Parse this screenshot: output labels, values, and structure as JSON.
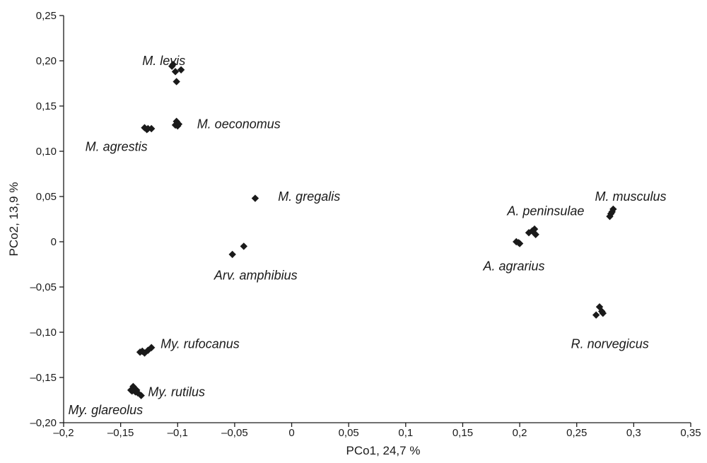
{
  "chart_data": {
    "type": "scatter",
    "title": "",
    "xlabel": "PCo1,  24,7 %",
    "ylabel": "PCo2,  13,9 %",
    "xlim": [
      -0.2,
      0.35
    ],
    "ylim": [
      -0.2,
      0.25
    ],
    "x_ticks": [
      -0.2,
      -0.15,
      -0.1,
      -0.05,
      0,
      0.05,
      0.1,
      0.15,
      0.2,
      0.25,
      0.3,
      0.35
    ],
    "x_tick_labels": [
      "–0,2",
      "–0,15",
      "–0,1",
      "–0,05",
      "0",
      "0,05",
      "0,1",
      "0,15",
      "0,2",
      "0,25",
      "0,3",
      "0,35"
    ],
    "y_ticks": [
      -0.2,
      -0.15,
      -0.1,
      -0.05,
      0,
      0.05,
      0.1,
      0.15,
      0.2,
      0.25
    ],
    "y_tick_labels": [
      "–0,20",
      "–0,15",
      "–0,10",
      "–0,05",
      "0",
      "0,05",
      "0,10",
      "0,15",
      "0,20",
      "0,25"
    ],
    "grid": false,
    "marker": "diamond",
    "marker_color": "#1a1a1a",
    "groups": [
      {
        "label": "M. levis",
        "label_x": -0.131,
        "label_y": 0.2,
        "points": [
          [
            -0.104,
            0.196
          ],
          [
            -0.102,
            0.188
          ],
          [
            -0.097,
            0.19
          ],
          [
            -0.101,
            0.177
          ],
          [
            -0.105,
            0.194
          ]
        ]
      },
      {
        "label": "M. oeconomus",
        "label_x": -0.083,
        "label_y": 0.13,
        "points": [
          [
            -0.101,
            0.133
          ],
          [
            -0.1,
            0.128
          ],
          [
            -0.102,
            0.129
          ],
          [
            -0.099,
            0.13
          ]
        ]
      },
      {
        "label": "M. agrestis",
        "label_x": -0.181,
        "label_y": 0.105,
        "points": [
          [
            -0.129,
            0.126
          ],
          [
            -0.127,
            0.124
          ],
          [
            -0.123,
            0.125
          ],
          [
            -0.126,
            0.125
          ]
        ]
      },
      {
        "label": "M. gregalis",
        "label_x": -0.012,
        "label_y": 0.05,
        "points": [
          [
            -0.032,
            0.048
          ]
        ]
      },
      {
        "label": "Arv. amphibius",
        "label_x": -0.068,
        "label_y": -0.037,
        "points": [
          [
            -0.052,
            -0.014
          ],
          [
            -0.042,
            -0.005
          ]
        ]
      },
      {
        "label": "A. peninsulae",
        "label_x": 0.189,
        "label_y": 0.034,
        "points": [
          [
            0.208,
            0.01
          ],
          [
            0.213,
            0.014
          ],
          [
            0.211,
            0.012
          ],
          [
            0.214,
            0.008
          ]
        ]
      },
      {
        "label": "A. agrarius",
        "label_x": 0.168,
        "label_y": -0.027,
        "points": [
          [
            0.197,
            0.0
          ],
          [
            0.2,
            -0.002
          ],
          [
            0.199,
            -0.001
          ]
        ]
      },
      {
        "label": "M. musculus",
        "label_x": 0.266,
        "label_y": 0.05,
        "points": [
          [
            0.282,
            0.036
          ],
          [
            0.279,
            0.028
          ],
          [
            0.28,
            0.031
          ],
          [
            0.281,
            0.033
          ]
        ]
      },
      {
        "label": "R. norvegicus",
        "label_x": 0.245,
        "label_y": -0.113,
        "points": [
          [
            0.267,
            -0.081
          ],
          [
            0.272,
            -0.077
          ],
          [
            0.27,
            -0.072
          ],
          [
            0.273,
            -0.079
          ]
        ]
      },
      {
        "label": "My. rufocanus",
        "label_x": -0.115,
        "label_y": -0.113,
        "points": [
          [
            -0.133,
            -0.122
          ],
          [
            -0.129,
            -0.123
          ],
          [
            -0.126,
            -0.12
          ],
          [
            -0.123,
            -0.117
          ],
          [
            -0.131,
            -0.121
          ]
        ]
      },
      {
        "label": "My. rutilus",
        "label_x": -0.126,
        "label_y": -0.166,
        "points": [
          [
            -0.139,
            -0.16
          ],
          [
            -0.136,
            -0.164
          ],
          [
            -0.138,
            -0.162
          ],
          [
            -0.137,
            -0.166
          ]
        ]
      },
      {
        "label": "My. glareolus",
        "label_x": -0.196,
        "label_y": -0.186,
        "points": [
          [
            -0.141,
            -0.164
          ],
          [
            -0.132,
            -0.17
          ],
          [
            -0.135,
            -0.167
          ],
          [
            -0.14,
            -0.165
          ]
        ]
      }
    ]
  }
}
